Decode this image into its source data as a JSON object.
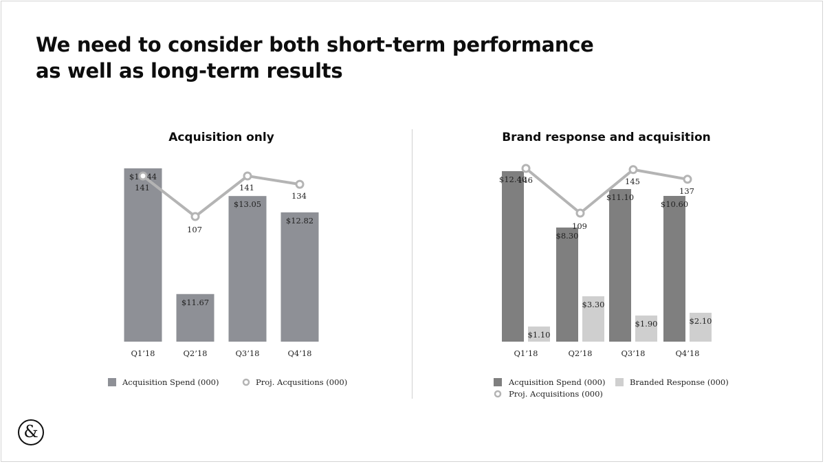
{
  "headline": {
    "line1": "We need to consider both short-term performance",
    "line2": "as well as long-term results"
  },
  "logo": {
    "glyph": "&"
  },
  "colors": {
    "acq_spend_left": "#8e9096",
    "acq_spend_right": "#7f7f7f",
    "branded": "#cfcfcf",
    "line": "#b4b4b4"
  },
  "chart_data": [
    {
      "type": "bar",
      "title": "Acquisition only",
      "categories": [
        "Q1’18",
        "Q2’18",
        "Q3’18",
        "Q4’18"
      ],
      "series": [
        {
          "name": "Acquisition Spend (000)",
          "kind": "bar",
          "values": [
            13.44,
            11.67,
            13.05,
            12.82
          ],
          "labels": [
            "$13.44",
            "$11.67",
            "$13.05",
            "$12.82"
          ]
        },
        {
          "name": "Proj. Acqusitions (000)",
          "kind": "line",
          "values": [
            141,
            107,
            141,
            134
          ],
          "labels": [
            "141",
            "107",
            "141",
            "134"
          ]
        }
      ],
      "bar_range": [
        11.0,
        14.0
      ],
      "line_range": [
        100,
        150
      ],
      "legend": "bottom"
    },
    {
      "type": "bar",
      "title": "Brand response and acquisition",
      "categories": [
        "Q1’18",
        "Q2’18",
        "Q3’18",
        "Q4’18"
      ],
      "series": [
        {
          "name": "Acquisition Spend (000)",
          "kind": "bar",
          "values": [
            12.4,
            8.3,
            11.1,
            10.6
          ],
          "labels": [
            "$12.40",
            "$8.30",
            "$11.10",
            "$10.60"
          ]
        },
        {
          "name": "Branded Response (000)",
          "kind": "bar",
          "values": [
            1.1,
            3.3,
            1.9,
            2.1
          ],
          "labels": [
            "$1.10",
            "$3.30",
            "$1.90",
            "$2.10"
          ]
        },
        {
          "name": "Proj. Acquisitions (000)",
          "kind": "line",
          "values": [
            146,
            109,
            145,
            137
          ],
          "labels": [
            "146",
            "109",
            "145",
            "137"
          ]
        }
      ],
      "bar_range": [
        0,
        13.0
      ],
      "line_range": [
        100,
        150
      ],
      "legend": "bottom"
    }
  ]
}
